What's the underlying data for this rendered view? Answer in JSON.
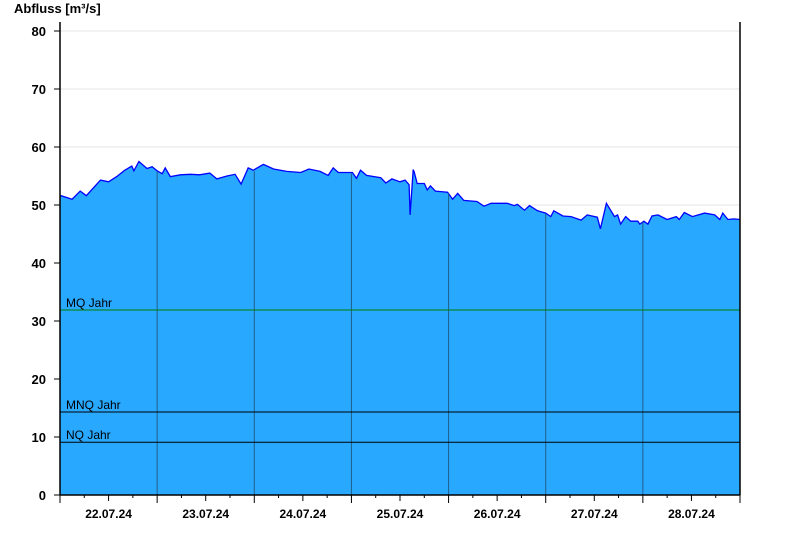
{
  "chart_data": {
    "type": "area",
    "title": "",
    "ylabel": "Abfluss [m³/s]",
    "xlabel": "",
    "ylim": [
      0,
      80
    ],
    "yticks": [
      "0",
      "10",
      "20",
      "30",
      "40",
      "50",
      "60",
      "70",
      "80"
    ],
    "xlim": [
      "2024-07-22T00:00",
      "2024-07-29T00:00"
    ],
    "xticks": [
      "22.07.24",
      "23.07.24",
      "24.07.24",
      "25.07.24",
      "26.07.24",
      "27.07.24",
      "28.07.24"
    ],
    "grid": "horizontal light grid every 10, vertical lines at midnight",
    "colors": {
      "fill": "#29a8ff",
      "line": "#0000ff",
      "mq": "#008000",
      "ref": "#000000",
      "daygrid": "#1f5f8a"
    },
    "reference_lines": [
      {
        "label": "MQ Jahr",
        "value": 31.9,
        "color": "#008000"
      },
      {
        "label": "MNQ Jahr",
        "value": 14.3,
        "color": "#000000"
      },
      {
        "label": "NQ Jahr",
        "value": 9.1,
        "color": "#000000"
      }
    ],
    "series": [
      {
        "x": [
          "2024-07-22T00:00",
          "2024-07-22T00:15",
          "2024-07-22T03:00",
          "2024-07-22T05:00",
          "2024-07-22T06:30",
          "2024-07-22T10:00",
          "2024-07-22T12:00",
          "2024-07-22T14:00",
          "2024-07-22T16:00",
          "2024-07-22T17:45",
          "2024-07-22T18:15",
          "2024-07-22T19:30",
          "2024-07-22T21:30",
          "2024-07-22T22:45",
          "2024-07-23T00:00",
          "2024-07-23T01:15",
          "2024-07-23T02:00",
          "2024-07-23T03:15",
          "2024-07-23T05:45",
          "2024-07-23T08:15",
          "2024-07-23T10:30",
          "2024-07-23T13:00",
          "2024-07-23T14:45",
          "2024-07-23T17:15",
          "2024-07-23T19:15",
          "2024-07-23T20:45",
          "2024-07-23T22:30",
          "2024-07-23T23:45",
          "2024-07-24T02:15",
          "2024-07-24T04:45",
          "2024-07-24T08:00",
          "2024-07-24T11:30",
          "2024-07-24T13:30",
          "2024-07-24T16:15",
          "2024-07-24T18:15",
          "2024-07-24T19:30",
          "2024-07-24T20:45",
          "2024-07-25T00:15",
          "2024-07-25T01:15",
          "2024-07-25T02:15",
          "2024-07-25T03:45",
          "2024-07-25T07:15",
          "2024-07-25T08:30",
          "2024-07-25T10:00",
          "2024-07-25T12:00",
          "2024-07-25T13:15",
          "2024-07-25T14:15",
          "2024-07-25T14:30",
          "2024-07-25T15:15",
          "2024-07-25T15:30",
          "2024-07-25T16:15",
          "2024-07-25T18:00",
          "2024-07-25T18:45",
          "2024-07-25T19:30",
          "2024-07-25T20:45",
          "2024-07-25T23:45",
          "2024-07-26T01:00",
          "2024-07-26T02:15",
          "2024-07-26T03:45",
          "2024-07-26T07:00",
          "2024-07-26T08:45",
          "2024-07-26T10:30",
          "2024-07-26T14:30",
          "2024-07-26T16:15",
          "2024-07-26T17:00",
          "2024-07-26T18:45",
          "2024-07-26T20:00",
          "2024-07-26T22:00",
          "2024-07-27T00:00",
          "2024-07-27T01:15",
          "2024-07-27T02:00",
          "2024-07-27T04:15",
          "2024-07-27T06:15",
          "2024-07-27T08:45",
          "2024-07-27T10:15",
          "2024-07-27T12:45",
          "2024-07-27T13:30",
          "2024-07-27T15:00",
          "2024-07-27T17:00",
          "2024-07-27T17:45",
          "2024-07-27T18:30",
          "2024-07-27T19:45",
          "2024-07-27T21:00",
          "2024-07-27T22:45",
          "2024-07-27T23:15",
          "2024-07-28T00:15",
          "2024-07-28T01:15",
          "2024-07-28T02:15",
          "2024-07-28T03:45",
          "2024-07-28T06:00",
          "2024-07-28T08:15",
          "2024-07-28T09:00",
          "2024-07-28T10:15",
          "2024-07-28T12:15",
          "2024-07-28T15:15",
          "2024-07-28T17:45",
          "2024-07-28T19:00",
          "2024-07-28T19:45",
          "2024-07-28T21:00",
          "2024-07-28T22:30",
          "2024-07-29T00:00"
        ],
        "y": [
          51.6,
          51.6,
          51.0,
          52.4,
          51.6,
          54.3,
          54.0,
          54.9,
          56.0,
          56.7,
          55.9,
          57.5,
          56.3,
          56.6,
          55.9,
          55.4,
          56.4,
          54.9,
          55.2,
          55.3,
          55.2,
          55.5,
          54.5,
          55.0,
          55.3,
          53.6,
          56.4,
          56.0,
          57.0,
          56.2,
          55.8,
          55.6,
          56.2,
          55.8,
          55.1,
          56.4,
          55.6,
          55.6,
          54.6,
          56.0,
          55.1,
          54.7,
          53.8,
          54.5,
          54.0,
          54.3,
          53.5,
          48.3,
          56.1,
          55.7,
          53.7,
          53.7,
          52.6,
          53.3,
          52.4,
          52.2,
          51.0,
          52.0,
          50.8,
          50.6,
          49.8,
          50.3,
          50.3,
          49.9,
          50.1,
          49.1,
          49.9,
          49.0,
          48.6,
          48.0,
          49.0,
          48.1,
          48.0,
          47.4,
          48.3,
          47.9,
          45.9,
          50.3,
          48.0,
          48.3,
          46.7,
          48.0,
          47.2,
          47.2,
          46.7,
          47.2,
          46.7,
          48.1,
          48.3,
          47.5,
          48.0,
          47.5,
          48.7,
          48.0,
          48.6,
          48.3,
          47.5,
          48.6,
          47.5,
          47.6,
          47.5
        ]
      }
    ]
  }
}
